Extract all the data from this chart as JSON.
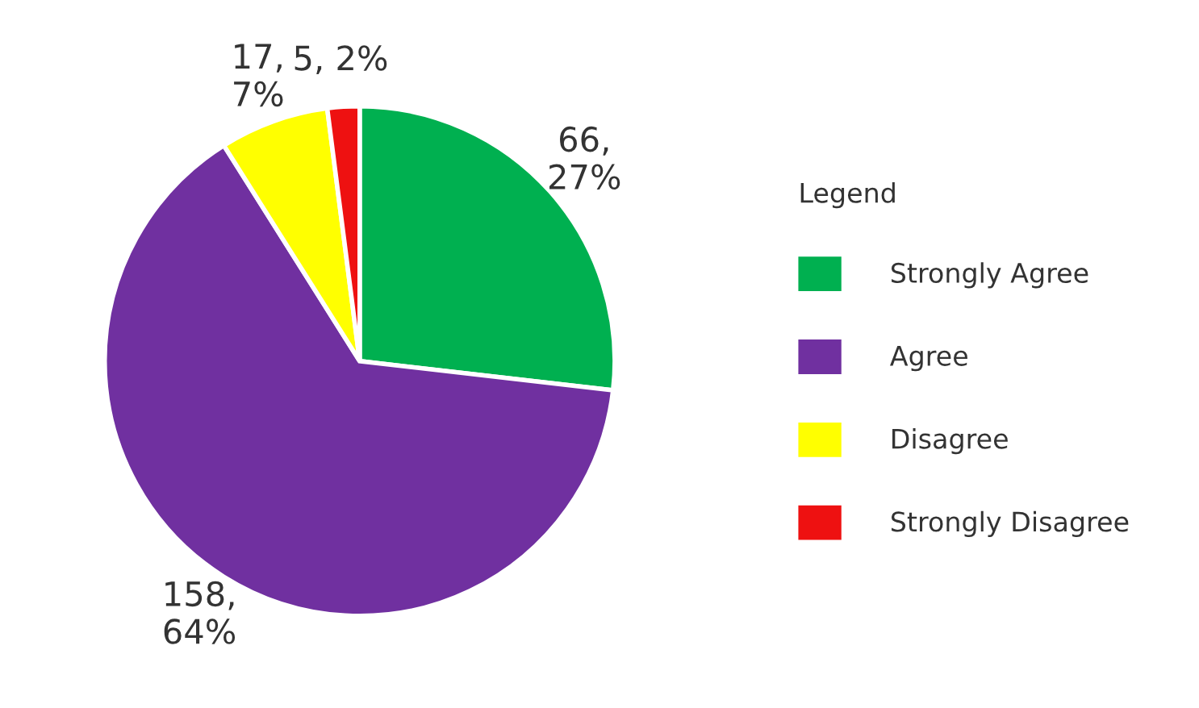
{
  "chart_data": {
    "type": "pie",
    "legend_title": "Legend",
    "categories": [
      "Strongly Agree",
      "Agree",
      "Disagree",
      "Strongly Disagree"
    ],
    "values": [
      66,
      158,
      17,
      5
    ],
    "colors": [
      "#00b050",
      "#7030a0",
      "#ffff00",
      "#ee1111"
    ],
    "value_labels": [
      "66,\n27%",
      "158,\n64%",
      "17,\n7%",
      "5, 2%"
    ],
    "legend": "right"
  }
}
